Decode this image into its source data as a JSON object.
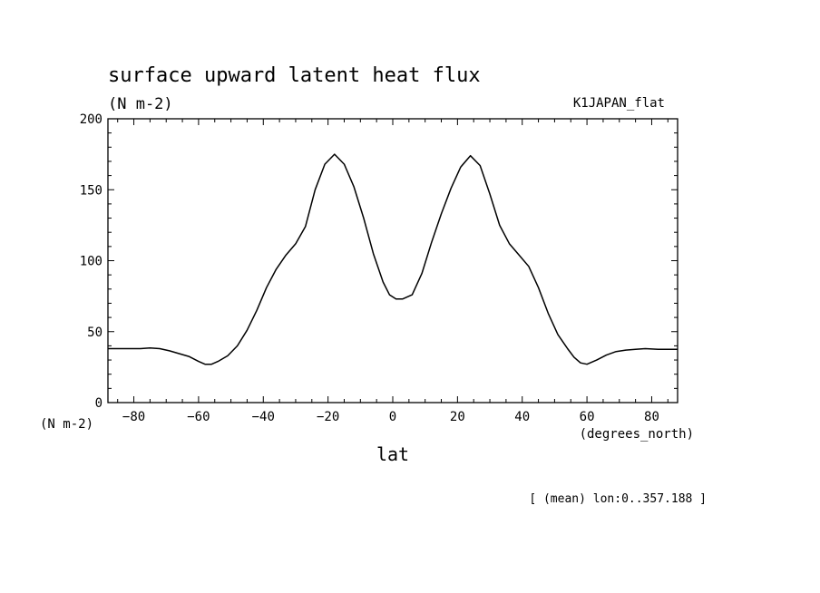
{
  "chart_data": {
    "type": "line",
    "title": "surface upward latent heat flux",
    "units": "(N m-2)",
    "dataset": "K1JAPAN_flat",
    "xlabel": "lat",
    "xunits": "(degrees_north)",
    "yunits_left": "(N m-2)",
    "note": "[ (mean) lon:0..357.188 ]",
    "xlim": [
      -88,
      88
    ],
    "ylim": [
      0,
      200
    ],
    "x_ticks": [
      -80,
      -60,
      -40,
      -20,
      0,
      20,
      40,
      60,
      80
    ],
    "x_tick_labels": [
      "−80",
      "−60",
      "−40",
      "−20",
      "0",
      "20",
      "40",
      "60",
      "80"
    ],
    "y_ticks": [
      0,
      50,
      100,
      150,
      200
    ],
    "y_tick_labels": [
      "0",
      "50",
      "100",
      "150",
      "200"
    ],
    "series": [
      {
        "x": [
          -88,
          -82,
          -78,
          -75,
          -72,
          -69,
          -66,
          -63,
          -60,
          -58,
          -56,
          -54,
          -51,
          -48,
          -45,
          -42,
          -39,
          -36,
          -33,
          -30,
          -27,
          -24,
          -21,
          -18,
          -15,
          -12,
          -9,
          -6,
          -3,
          -1,
          1,
          3,
          6,
          9,
          12,
          15,
          18,
          21,
          24,
          27,
          30,
          33,
          36,
          39,
          42,
          45,
          48,
          51,
          54,
          56,
          58,
          60,
          63,
          66,
          69,
          72,
          75,
          78,
          82,
          88
        ],
        "y": [
          38,
          38,
          38,
          38.5,
          38,
          36.5,
          34.5,
          32.5,
          29,
          27,
          27,
          29,
          33,
          40,
          51,
          65,
          81,
          94,
          104,
          112,
          124,
          150,
          168,
          175,
          168,
          152,
          130,
          105,
          85,
          76,
          73,
          73,
          76,
          91,
          113,
          133,
          151,
          166,
          174,
          167,
          147,
          125,
          112,
          104,
          96,
          81,
          63,
          48,
          38,
          32,
          28,
          27,
          30,
          33.5,
          36,
          37,
          37.5,
          38,
          37.5,
          37.5
        ]
      }
    ]
  }
}
